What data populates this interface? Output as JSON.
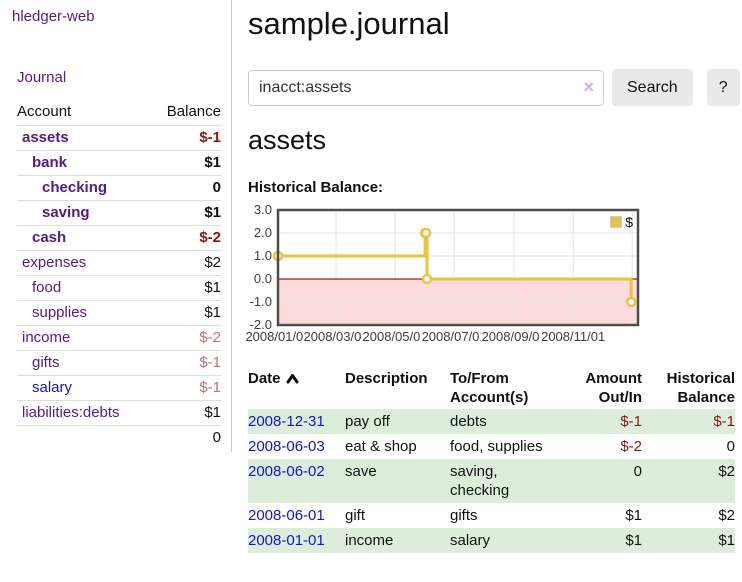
{
  "app": {
    "brand": "hledger-web",
    "nav": {
      "journal": "Journal"
    }
  },
  "sidebar": {
    "accounts_table": {
      "headers": {
        "account": "Account",
        "balance": "Balance"
      },
      "rows": [
        {
          "account": "assets",
          "balance": "$-1",
          "level": 1,
          "bold": true,
          "link_color": "purple"
        },
        {
          "account": "bank",
          "balance": "$1",
          "level": 2,
          "bold": true,
          "link_color": "purple"
        },
        {
          "account": "checking",
          "balance": "0",
          "level": 3,
          "bold": true,
          "link_color": "purple"
        },
        {
          "account": "saving",
          "balance": "$1",
          "level": 3,
          "bold": true,
          "link_color": "purple"
        },
        {
          "account": "cash",
          "balance": "$-2",
          "level": 2,
          "bold": true,
          "link_color": "purple"
        },
        {
          "account": "expenses",
          "balance": "$2",
          "level": 1,
          "bold": false,
          "link_color": "purple"
        },
        {
          "account": "food",
          "balance": "$1",
          "level": 2,
          "bold": false,
          "link_color": "purple"
        },
        {
          "account": "supplies",
          "balance": "$1",
          "level": 2,
          "bold": false,
          "link_color": "purple"
        },
        {
          "account": "income",
          "balance": "$-2",
          "level": 1,
          "bold": false,
          "link_color": "purple"
        },
        {
          "account": "gifts",
          "balance": "$-1",
          "level": 2,
          "bold": false,
          "link_color": "purple"
        },
        {
          "account": "salary",
          "balance": "$-1",
          "level": 2,
          "bold": false,
          "link_color": "blue"
        },
        {
          "account": "liabilities:debts",
          "balance": "$1",
          "level": 1,
          "bold": false,
          "link_color": "purple"
        }
      ],
      "total": "0"
    }
  },
  "main": {
    "title": "sample.journal",
    "search": {
      "value": "inacct:assets",
      "clear_glyph": "×",
      "button_label": "Search",
      "help_label": "?"
    },
    "account_heading": "assets",
    "section_label": "Historical Balance:"
  },
  "chart_data": {
    "type": "line",
    "title": "Historical Balance",
    "step": true,
    "series": [
      {
        "name": "$",
        "color": "#edc240",
        "points": [
          {
            "date": "2008-01-01",
            "value": 1
          },
          {
            "date": "2008-06-01",
            "value": 2
          },
          {
            "date": "2008-06-02",
            "value": 2
          },
          {
            "date": "2008-06-03",
            "value": 0
          },
          {
            "date": "2008-12-31",
            "value": -1
          }
        ]
      }
    ],
    "x_start": "2008-01-01",
    "x_end": "2009-01-07",
    "x_ticks": [
      "2008/01/01",
      "2008/03/01",
      "2008/05/01",
      "2008/07/01",
      "2008/09/01",
      "2008/11/01"
    ],
    "extra_gridline_date": "2009-01-01",
    "y_ticks": [
      3.0,
      2.0,
      1.0,
      0.0,
      -1.0,
      -2.0
    ],
    "ylim": [
      -2,
      3
    ],
    "grid": true,
    "legend": {
      "label": "$",
      "position": "top-right"
    },
    "negative_region_fill": "#fbdbdb",
    "zero_line_color": "#9e1a1a",
    "grid_color": "#e3e3e3",
    "border_color": "#4d4d4d"
  },
  "register": {
    "headers": {
      "date": "Date",
      "description": "Description",
      "tofrom_line1": "To/From",
      "tofrom_line2": "Account(s)",
      "amount_line1": "Amount",
      "amount_line2": "Out/In",
      "balance_line1": "Historical",
      "balance_line2": "Balance"
    },
    "rows": [
      {
        "date": "2008-12-31",
        "description": "pay off",
        "accounts": "debts",
        "amount": "$-1",
        "balance": "$-1",
        "shaded": true
      },
      {
        "date": "2008-06-03",
        "description": "eat & shop",
        "accounts": "food, supplies",
        "amount": "$-2",
        "balance": "0",
        "shaded": false
      },
      {
        "date": "2008-06-02",
        "description": "save",
        "accounts": "saving,\nchecking",
        "amount": "0",
        "balance": "$2",
        "shaded": true
      },
      {
        "date": "2008-06-01",
        "description": "gift",
        "accounts": "gifts",
        "amount": "$1",
        "balance": "$2",
        "shaded": false
      },
      {
        "date": "2008-01-01",
        "description": "income",
        "accounts": "salary",
        "amount": "$1",
        "balance": "$1",
        "shaded": true
      }
    ]
  },
  "colors": {
    "link_purple": "#551a8b",
    "link_blue": "#1212dd",
    "negative_strong": "#8b1313",
    "negative_muted": "#bf7070",
    "row_stripe_green": "#dceeda",
    "button_gray": "#e9e9e9",
    "chart_line": "#edc240"
  }
}
